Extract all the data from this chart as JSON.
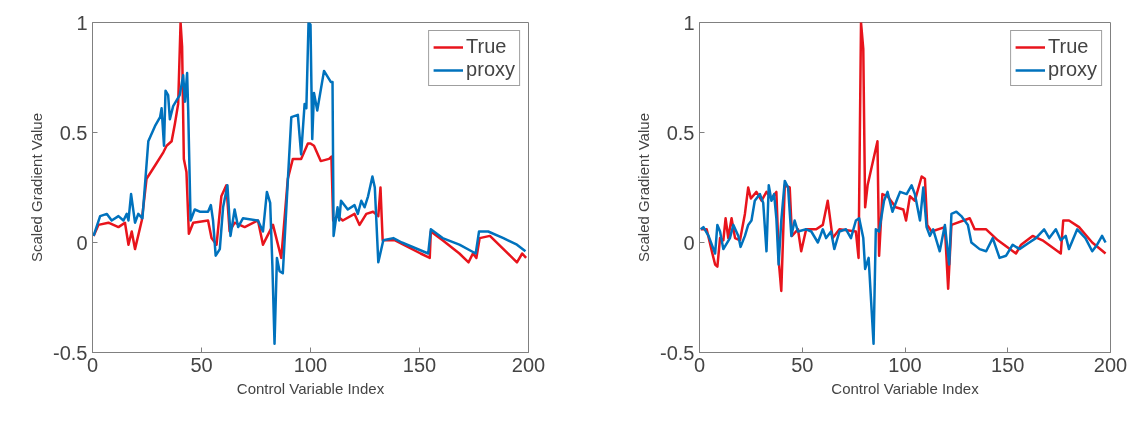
{
  "chart_data": [
    {
      "type": "line",
      "xlabel": "Control Variable Index",
      "ylabel": "Scaled Gradient Value",
      "xlim": [
        0,
        200
      ],
      "ylim": [
        -0.5,
        1
      ],
      "xticks": [
        0,
        50,
        100,
        150,
        200
      ],
      "yticks": [
        -0.5,
        0,
        0.5,
        1
      ],
      "grid": false,
      "legend": "top right",
      "line_style": "solid",
      "marker": "none",
      "series": [
        {
          "name": "True",
          "color": "#e8141c",
          "x": [
            0.5,
            2.7,
            7.3,
            11.9,
            14.9,
            16.5,
            18,
            19.5,
            22.6,
            24.8,
            28.7,
            32.5,
            34,
            36.3,
            37.8,
            39.3,
            40.4,
            41.1,
            41.9,
            43.1,
            44.2,
            46.2,
            53,
            54.6,
            56.9,
            59.1,
            61.4,
            62.9,
            65.2,
            69.8,
            75.9,
            78.2,
            79.7,
            82.8,
            86.6,
            89.6,
            91.9,
            95.7,
            98.8,
            100,
            101.6,
            104.7,
            108.5,
            109.6,
            110.4,
            112.4,
            114.8,
            120.2,
            122.5,
            125.6,
            128.7,
            131.1,
            132.1,
            133.1,
            138.8,
            150.5,
            154.7,
            155.2,
            160.6,
            168.3,
            172.5,
            174.5,
            176.1,
            177.6,
            182.3,
            194.7,
            197.1,
            198.9
          ],
          "values": [
            0.03,
            0.08,
            0.09,
            0.07,
            0.09,
            -0.01,
            0.05,
            -0.03,
            0.1,
            0.29,
            0.35,
            0.41,
            0.44,
            0.46,
            0.54,
            0.63,
            1.0,
            0.89,
            0.38,
            0.32,
            0.04,
            0.09,
            0.1,
            0.02,
            -0.01,
            0.21,
            0.26,
            0.05,
            0.09,
            0.07,
            0.1,
            -0.01,
            0.02,
            0.08,
            -0.07,
            0.29,
            0.38,
            0.38,
            0.45,
            0.45,
            0.44,
            0.37,
            0.38,
            0.39,
            0.1,
            0.12,
            0.1,
            0.13,
            0.08,
            0.13,
            0.14,
            0.12,
            0.25,
            0.01,
            0.01,
            -0.05,
            -0.07,
            0.05,
            0.01,
            -0.05,
            -0.09,
            -0.05,
            -0.07,
            0.02,
            0.03,
            -0.09,
            -0.05,
            -0.07
          ]
        },
        {
          "name": "proxy",
          "color": "#0072bd",
          "x": [
            0.5,
            3.5,
            6.6,
            8.8,
            11.9,
            14.2,
            15.7,
            16.5,
            17.7,
            19.5,
            21,
            22.9,
            25.6,
            28.7,
            31,
            31.7,
            32.8,
            33.5,
            34.7,
            35.5,
            37,
            40,
            41.6,
            42.4,
            43.4,
            43.9,
            45,
            46.9,
            49.2,
            53,
            54.3,
            55.3,
            56.5,
            58.4,
            59.9,
            61.9,
            63.3,
            65.2,
            66.8,
            69,
            75.9,
            78.2,
            80,
            81.5,
            82.5,
            83.5,
            84.6,
            85.8,
            87.3,
            89.6,
            91.2,
            94.2,
            95.7,
            97.3,
            98.1,
            99.1,
            100,
            100.8,
            101.6,
            103.1,
            106.2,
            109.3,
            110.1,
            110.6,
            112.4,
            113.2,
            114,
            117.1,
            120.2,
            121.7,
            123.3,
            124.8,
            126.4,
            128.4,
            129.5,
            131.1,
            133.4,
            138,
            141.9,
            154,
            155.2,
            160.6,
            168.3,
            175.8,
            177.3,
            181.5,
            188.5,
            194.7,
            198.6
          ],
          "values": [
            0.03,
            0.12,
            0.13,
            0.1,
            0.12,
            0.1,
            0.13,
            0.1,
            0.22,
            0.09,
            0.13,
            0.11,
            0.46,
            0.53,
            0.57,
            0.61,
            0.44,
            0.69,
            0.67,
            0.56,
            0.62,
            0.67,
            0.76,
            0.64,
            0.77,
            0.6,
            0.1,
            0.15,
            0.14,
            0.14,
            0.17,
            0.1,
            -0.06,
            -0.03,
            0.16,
            0.26,
            0.03,
            0.15,
            0.07,
            0.11,
            0.1,
            0.05,
            0.23,
            0.18,
            -0.1,
            -0.46,
            -0.07,
            -0.13,
            -0.14,
            0.28,
            0.57,
            0.58,
            0.4,
            0.63,
            0.61,
            1.0,
            0.99,
            0.47,
            0.68,
            0.6,
            0.78,
            0.73,
            0.73,
            0.03,
            0.16,
            0.1,
            0.19,
            0.15,
            0.17,
            0.13,
            0.19,
            0.16,
            0.21,
            0.3,
            0.25,
            -0.09,
            0.01,
            0.02,
            0.0,
            -0.05,
            0.06,
            0.02,
            -0.01,
            -0.05,
            0.05,
            0.05,
            0.02,
            -0.01,
            -0.04
          ]
        }
      ]
    },
    {
      "type": "line",
      "xlabel": "Control Variable Index",
      "ylabel": "Scaled Gradient Value",
      "xlim": [
        0,
        200
      ],
      "ylim": [
        -0.5,
        1
      ],
      "xticks": [
        0,
        50,
        100,
        150,
        200
      ],
      "yticks": [
        -0.5,
        0,
        0.5,
        1
      ],
      "grid": false,
      "legend": "top right",
      "line_style": "solid",
      "marker": "none",
      "series": [
        {
          "name": "True",
          "color": "#e8141c",
          "x": [
            0.6,
            3.5,
            6,
            7.6,
            8.7,
            10,
            11.6,
            12.7,
            14,
            15.6,
            17.3,
            19.7,
            22.1,
            23.7,
            25,
            27.7,
            30.2,
            32.6,
            35,
            37.4,
            38.7,
            39.8,
            41.5,
            43.9,
            45,
            47.9,
            49.5,
            51.9,
            56.8,
            60,
            62.4,
            64.8,
            68.1,
            76.1,
            77.4,
            78.6,
            79.7,
            80.6,
            81.8,
            86.6,
            87.4,
            89,
            91.5,
            95.5,
            99.2,
            100.5,
            102.4,
            104.8,
            108.1,
            109.7,
            110.8,
            112.9,
            119.4,
            121,
            122.6,
            131.5,
            133.9,
            139.5,
            145.2,
            154,
            156.5,
            162.1,
            166.9,
            175.8,
            177,
            179.8,
            184.7,
            191.1,
            197.6
          ],
          "values": [
            0.06,
            0.06,
            -0.04,
            -0.1,
            -0.11,
            0.02,
            0.01,
            0.11,
            0.02,
            0.11,
            0.02,
            0.01,
            0.13,
            0.25,
            0.2,
            0.23,
            0.19,
            0.23,
            0.2,
            0.23,
            -0.1,
            -0.22,
            0.26,
            0.25,
            0.03,
            0.06,
            -0.04,
            0.06,
            0.06,
            0.08,
            0.19,
            0.02,
            0.06,
            0.05,
            -0.07,
            1.0,
            0.88,
            0.16,
            0.26,
            0.46,
            -0.06,
            0.22,
            0.21,
            0.16,
            0.15,
            0.1,
            0.21,
            0.19,
            0.3,
            0.29,
            0.08,
            0.05,
            0.07,
            -0.21,
            0.08,
            0.11,
            0.06,
            0.06,
            0.01,
            -0.05,
            -0.01,
            0.03,
            0.01,
            -0.05,
            0.1,
            0.1,
            0.07,
            0.0,
            -0.05
          ]
        },
        {
          "name": "proxy",
          "color": "#0072bd",
          "x": [
            0.6,
            1.9,
            4.4,
            7.6,
            8.7,
            10,
            11.6,
            14.8,
            16.5,
            18.9,
            20,
            22.1,
            23.7,
            25.3,
            26.9,
            29.4,
            31,
            32.6,
            33.7,
            35,
            36.3,
            37.4,
            38.5,
            39.8,
            41.5,
            43.1,
            44.7,
            46.3,
            47.9,
            51.9,
            54.4,
            57.6,
            60,
            61.6,
            64,
            65.6,
            68.1,
            71.3,
            73.7,
            76.1,
            77.7,
            79.7,
            80.6,
            82.3,
            84.7,
            85.8,
            87.4,
            89.8,
            91.5,
            93.9,
            96.3,
            97.6,
            100.8,
            103.2,
            104.8,
            107.3,
            108.9,
            110.5,
            112.1,
            113.7,
            116.9,
            119.4,
            121.5,
            122.6,
            125,
            127.4,
            130.6,
            132.3,
            136.3,
            139.5,
            142.7,
            146,
            149.2,
            152.4,
            155.7,
            160.5,
            163.7,
            167.7,
            170.2,
            173.4,
            175.8,
            178.2,
            179.8,
            183.8,
            187.8,
            191.1,
            193.5,
            195.9,
            197.6
          ],
          "values": [
            0.06,
            0.07,
            0.03,
            -0.05,
            0.08,
            0.05,
            -0.03,
            0.02,
            0.08,
            0.03,
            -0.02,
            0.03,
            0.08,
            0.1,
            0.19,
            0.22,
            0.18,
            -0.04,
            0.26,
            0.19,
            0.22,
            0.11,
            -0.1,
            0.1,
            0.28,
            0.25,
            0.03,
            0.1,
            0.05,
            0.06,
            0.05,
            0.0,
            0.06,
            0.02,
            0.05,
            -0.03,
            0.05,
            0.06,
            0.02,
            0.1,
            0.11,
            0.02,
            -0.12,
            -0.07,
            -0.46,
            0.06,
            0.05,
            0.19,
            0.23,
            0.14,
            0.2,
            0.23,
            0.22,
            0.26,
            0.22,
            0.1,
            0.25,
            0.07,
            0.03,
            0.06,
            -0.04,
            0.08,
            -0.1,
            0.13,
            0.14,
            0.12,
            0.08,
            0.0,
            -0.03,
            -0.04,
            0.02,
            -0.07,
            -0.06,
            -0.01,
            -0.03,
            0.0,
            0.02,
            0.06,
            0.02,
            0.06,
            0.01,
            0.03,
            -0.03,
            0.06,
            0.02,
            -0.04,
            -0.01,
            0.03,
            0.0
          ]
        }
      ]
    }
  ]
}
